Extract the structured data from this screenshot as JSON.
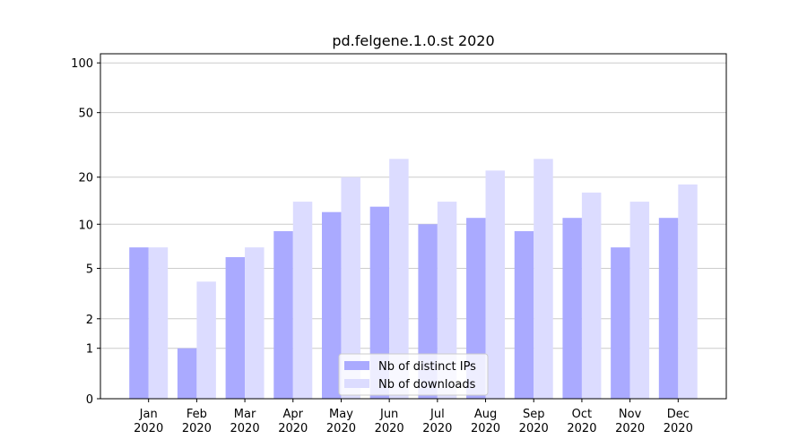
{
  "chart_data": {
    "type": "bar",
    "title": "pd.felgene.1.0.st 2020",
    "categories": [
      "Jan 2020",
      "Feb 2020",
      "Mar 2020",
      "Apr 2020",
      "May 2020",
      "Jun 2020",
      "Jul 2020",
      "Aug 2020",
      "Sep 2020",
      "Oct 2020",
      "Nov 2020",
      "Dec 2020"
    ],
    "series": [
      {
        "name": "Nb of distinct IPs",
        "color": "#aaaaff",
        "values": [
          7,
          1,
          6,
          9,
          12,
          13,
          10,
          11,
          9,
          11,
          7,
          11
        ]
      },
      {
        "name": "Nb of downloads",
        "color": "#dcdcff",
        "values": [
          7,
          4,
          7,
          14,
          20,
          26,
          14,
          22,
          26,
          16,
          14,
          18
        ]
      }
    ],
    "yscale": "log1p",
    "ylim": [
      0,
      113.5
    ],
    "yticks": [
      0,
      1,
      2,
      5,
      10,
      20,
      50,
      100
    ],
    "grid": true,
    "legend": "lower center"
  }
}
